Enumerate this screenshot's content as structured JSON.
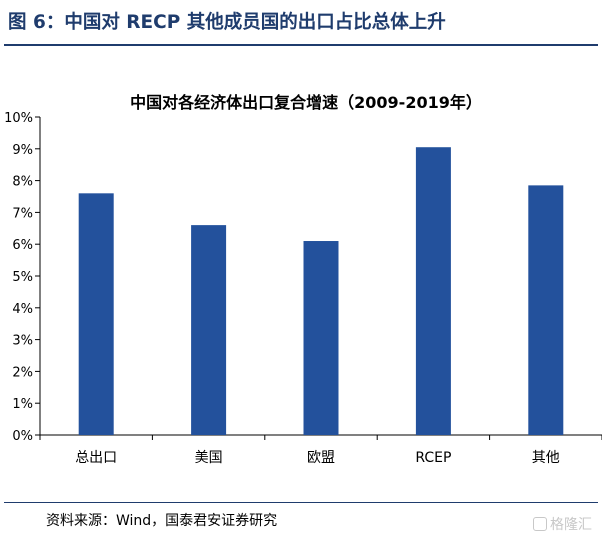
{
  "figure": {
    "heading": "图 6：中国对 RECP 其他成员国的出口占比总体上升",
    "source": "资料来源：Wind，国泰君安证券研究",
    "watermark": "格隆汇"
  },
  "chart_data": {
    "type": "bar",
    "title": "中国对各经济体出口复合增速（2009-2019年）",
    "categories": [
      "总出口",
      "美国",
      "欧盟",
      "RCEP",
      "其他"
    ],
    "values": [
      7.6,
      6.6,
      6.1,
      9.05,
      7.85
    ],
    "value_unit": "%",
    "ylim": [
      0,
      10
    ],
    "yticks": [
      "0%",
      "1%",
      "2%",
      "3%",
      "4%",
      "5%",
      "6%",
      "7%",
      "8%",
      "9%",
      "10%"
    ],
    "xlabel": "",
    "ylabel": "",
    "grid": false,
    "bar_color": "#23519c"
  }
}
